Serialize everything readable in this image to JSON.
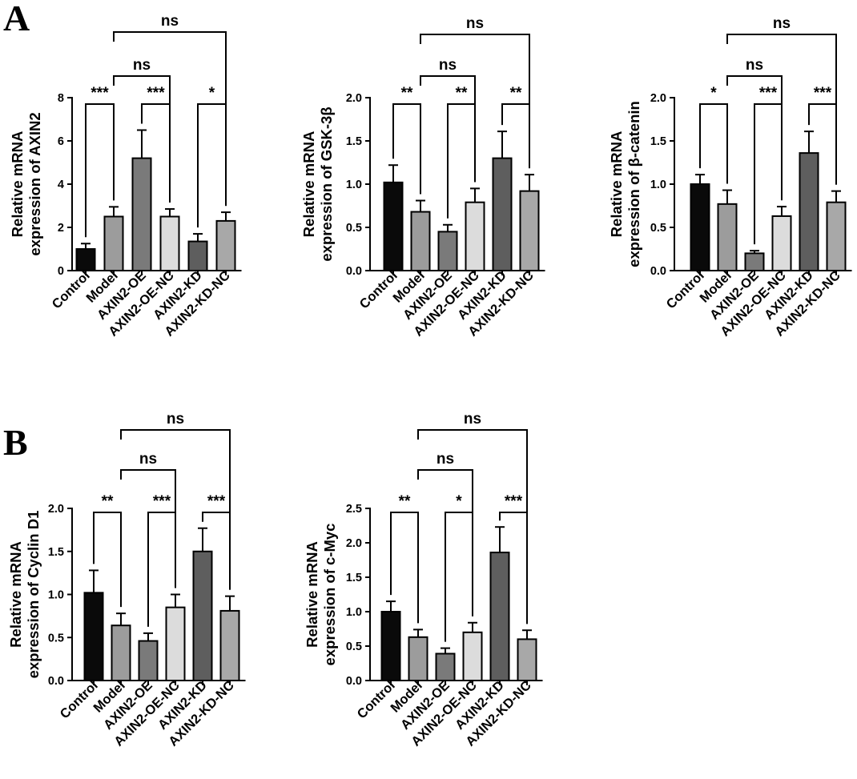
{
  "figure": {
    "panel_letters": [
      "A",
      "B"
    ]
  },
  "colors": {
    "Control": "#0a0a0a",
    "Model": "#9c9c9c",
    "AXIN2-OE": "#7a7a7a",
    "AXIN2-OE-NC": "#dcdcdc",
    "AXIN2-KD": "#5e5e5e",
    "AXIN2-KD-NC": "#a8a8a8"
  },
  "chart_data": [
    {
      "type": "bar",
      "panel": "A",
      "ylabel": [
        "Relative mRNA",
        "expression of AXIN2"
      ],
      "categories": [
        "Control",
        "Model",
        "AXIN2-OE",
        "AXIN2-OE-NC",
        "AXIN2-KD",
        "AXIN2-KD-NC"
      ],
      "values": [
        1.0,
        2.5,
        5.2,
        2.5,
        1.35,
        2.3
      ],
      "errors": [
        0.25,
        0.45,
        1.3,
        0.35,
        0.35,
        0.4
      ],
      "ylim": [
        0,
        8
      ],
      "yticks": [
        "0",
        "2",
        "4",
        "6",
        "8"
      ],
      "comparisons": [
        {
          "pair": [
            "Control",
            "Model"
          ],
          "label": "***"
        },
        {
          "pair": [
            "AXIN2-OE",
            "AXIN2-OE-NC"
          ],
          "label": "***"
        },
        {
          "pair": [
            "AXIN2-KD",
            "AXIN2-KD-NC"
          ],
          "label": "*"
        },
        {
          "pair": [
            "Model",
            "AXIN2-OE-NC"
          ],
          "label": "ns"
        },
        {
          "pair": [
            "Model",
            "AXIN2-KD-NC"
          ],
          "label": "ns"
        }
      ]
    },
    {
      "type": "bar",
      "panel": "A",
      "ylabel": [
        "Relative mRNA",
        "expression of GSK-3β"
      ],
      "categories": [
        "Control",
        "Model",
        "AXIN2-OE",
        "AXIN2-OE-NC",
        "AXIN2-KD",
        "AXIN2-KD-NC"
      ],
      "values": [
        1.02,
        0.68,
        0.45,
        0.79,
        1.3,
        0.92
      ],
      "errors": [
        0.2,
        0.13,
        0.08,
        0.16,
        0.31,
        0.19
      ],
      "ylim": [
        0,
        2
      ],
      "yticks": [
        "0.0",
        "0.5",
        "1.0",
        "1.5",
        "2.0"
      ],
      "comparisons": [
        {
          "pair": [
            "Control",
            "Model"
          ],
          "label": "**"
        },
        {
          "pair": [
            "AXIN2-OE",
            "AXIN2-OE-NC"
          ],
          "label": "**"
        },
        {
          "pair": [
            "AXIN2-KD",
            "AXIN2-KD-NC"
          ],
          "label": "**"
        },
        {
          "pair": [
            "Model",
            "AXIN2-OE-NC"
          ],
          "label": "ns"
        },
        {
          "pair": [
            "Model",
            "AXIN2-KD-NC"
          ],
          "label": "ns"
        }
      ]
    },
    {
      "type": "bar",
      "panel": "A",
      "ylabel": [
        "Relative mRNA",
        "expression of β-catenin"
      ],
      "categories": [
        "Control",
        "Model",
        "AXIN2-OE",
        "AXIN2-OE-NC",
        "AXIN2-KD",
        "AXIN2-KD-NC"
      ],
      "values": [
        1.0,
        0.77,
        0.2,
        0.63,
        1.36,
        0.79
      ],
      "errors": [
        0.11,
        0.16,
        0.03,
        0.11,
        0.25,
        0.13
      ],
      "ylim": [
        0,
        2
      ],
      "yticks": [
        "0.0",
        "0.5",
        "1.0",
        "1.5",
        "2.0"
      ],
      "comparisons": [
        {
          "pair": [
            "Control",
            "Model"
          ],
          "label": "*"
        },
        {
          "pair": [
            "AXIN2-OE",
            "AXIN2-OE-NC"
          ],
          "label": "***"
        },
        {
          "pair": [
            "AXIN2-KD",
            "AXIN2-KD-NC"
          ],
          "label": "***"
        },
        {
          "pair": [
            "Model",
            "AXIN2-OE-NC"
          ],
          "label": "ns"
        },
        {
          "pair": [
            "Model",
            "AXIN2-KD-NC"
          ],
          "label": "ns"
        }
      ]
    },
    {
      "type": "bar",
      "panel": "B",
      "ylabel": [
        "Relative mRNA",
        "expression of Cyclin D1"
      ],
      "categories": [
        "Control",
        "Model",
        "AXIN2-OE",
        "AXIN2-OE-NC",
        "AXIN2-KD",
        "AXIN2-KD-NC"
      ],
      "values": [
        1.02,
        0.64,
        0.46,
        0.85,
        1.5,
        0.81
      ],
      "errors": [
        0.26,
        0.14,
        0.09,
        0.15,
        0.27,
        0.17
      ],
      "ylim": [
        0,
        2
      ],
      "yticks": [
        "0.0",
        "0.5",
        "1.0",
        "1.5",
        "2.0"
      ],
      "comparisons": [
        {
          "pair": [
            "Control",
            "Model"
          ],
          "label": "**"
        },
        {
          "pair": [
            "AXIN2-OE",
            "AXIN2-OE-NC"
          ],
          "label": "***"
        },
        {
          "pair": [
            "AXIN2-KD",
            "AXIN2-KD-NC"
          ],
          "label": "***"
        },
        {
          "pair": [
            "Model",
            "AXIN2-OE-NC"
          ],
          "label": "ns"
        },
        {
          "pair": [
            "Model",
            "AXIN2-KD-NC"
          ],
          "label": "ns"
        }
      ]
    },
    {
      "type": "bar",
      "panel": "B",
      "ylabel": [
        "Relative mRNA",
        "expression of c-Myc"
      ],
      "categories": [
        "Control",
        "Model",
        "AXIN2-OE",
        "AXIN2-OE-NC",
        "AXIN2-KD",
        "AXIN2-KD-NC"
      ],
      "values": [
        1.0,
        0.63,
        0.39,
        0.7,
        1.86,
        0.6
      ],
      "errors": [
        0.15,
        0.11,
        0.08,
        0.14,
        0.37,
        0.13
      ],
      "ylim": [
        0,
        2.5
      ],
      "yticks": [
        "0.0",
        "0.5",
        "1.0",
        "1.5",
        "2.0",
        "2.5"
      ],
      "comparisons": [
        {
          "pair": [
            "Control",
            "Model"
          ],
          "label": "**"
        },
        {
          "pair": [
            "AXIN2-OE",
            "AXIN2-OE-NC"
          ],
          "label": "*"
        },
        {
          "pair": [
            "AXIN2-KD",
            "AXIN2-KD-NC"
          ],
          "label": "***"
        },
        {
          "pair": [
            "Model",
            "AXIN2-OE-NC"
          ],
          "label": "ns"
        },
        {
          "pair": [
            "Model",
            "AXIN2-KD-NC"
          ],
          "label": "ns"
        }
      ]
    }
  ]
}
